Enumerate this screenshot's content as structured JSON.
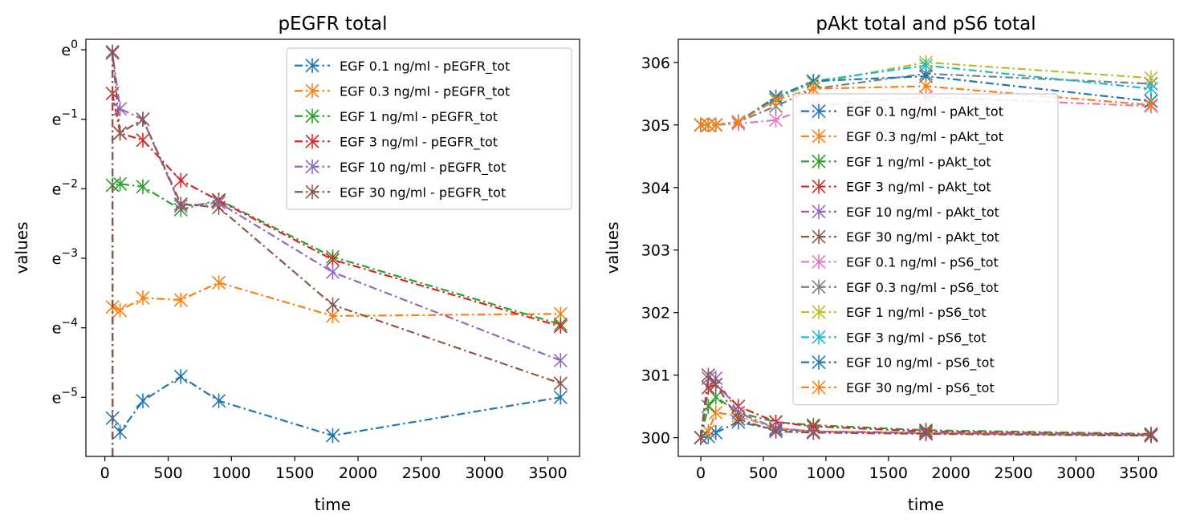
{
  "chart_data": [
    {
      "type": "line",
      "title": "pEGFR total",
      "xlabel": "time",
      "ylabel": "values",
      "xlim": [
        -150,
        3750
      ],
      "ylim": [
        -5.85,
        0.15
      ],
      "y_scale": "log (base e)",
      "xticks": [
        0,
        500,
        1000,
        1500,
        2000,
        2500,
        3000,
        3500
      ],
      "yticks": [
        {
          "value": 0,
          "base": "e",
          "exp": "0"
        },
        {
          "value": -1,
          "base": "e",
          "exp": "−1"
        },
        {
          "value": -2,
          "base": "e",
          "exp": "−2"
        },
        {
          "value": -3,
          "base": "e",
          "exp": "−3"
        },
        {
          "value": -4,
          "base": "e",
          "exp": "−4"
        },
        {
          "value": -5,
          "base": "e",
          "exp": "−5"
        }
      ],
      "grid": false,
      "legend_position": "upper right",
      "series": [
        {
          "name": "EGF 0.1 ng/ml - pEGFR_tot",
          "color": "#1f77b4",
          "x": [
            60,
            120,
            300,
            600,
            900,
            1800,
            3600
          ],
          "ln_y": [
            -5.3,
            -5.5,
            -5.05,
            -4.7,
            -5.05,
            -5.55,
            -5.0
          ]
        },
        {
          "name": "EGF 0.3 ng/ml - pEGFR_tot",
          "color": "#ff7f0e",
          "x": [
            60,
            120,
            300,
            600,
            900,
            1800,
            3600
          ],
          "ln_y": [
            -3.7,
            -3.75,
            -3.57,
            -3.6,
            -3.35,
            -3.83,
            -3.8
          ]
        },
        {
          "name": "EGF 1 ng/ml - pEGFR_tot",
          "color": "#2ca02c",
          "x": [
            60,
            120,
            300,
            600,
            900,
            1800,
            3600
          ],
          "ln_y": [
            -1.95,
            -1.93,
            -1.97,
            -2.3,
            -2.16,
            -2.98,
            -3.95
          ]
        },
        {
          "name": "EGF 3 ng/ml - pEGFR_tot",
          "color": "#d62728",
          "x": [
            60,
            120,
            300,
            600,
            900,
            1800,
            3600
          ],
          "ln_y": [
            -0.63,
            -1.2,
            -1.3,
            -1.88,
            -2.17,
            -3.02,
            -3.98
          ]
        },
        {
          "name": "EGF 10 ng/ml - pEGFR_tot",
          "color": "#9467bd",
          "x": [
            60,
            120,
            300,
            600,
            900,
            1800,
            3600
          ],
          "ln_y": [
            -0.05,
            -0.85,
            -1.0,
            -2.25,
            -2.2,
            -3.2,
            -4.47
          ]
        },
        {
          "name": "EGF 30 ng/ml - pEGFR_tot",
          "color": "#8c564b",
          "x": [
            60,
            120,
            300,
            600,
            900,
            1800,
            3600
          ],
          "ln_y": [
            -0.03,
            -1.2,
            -1.0,
            -2.22,
            -2.27,
            -3.67,
            -4.8
          ]
        }
      ]
    },
    {
      "type": "line",
      "title": "pAkt total and pS6 total",
      "xlabel": "time",
      "ylabel": "values",
      "xlim": [
        -180,
        3780
      ],
      "ylim": [
        299.7,
        306.37
      ],
      "xticks": [
        0,
        500,
        1000,
        1500,
        2000,
        2500,
        3000,
        3500
      ],
      "yticks": [
        300,
        301,
        302,
        303,
        304,
        305,
        306
      ],
      "grid": false,
      "legend_position": "center",
      "series": [
        {
          "name": "EGF 0.1 ng/ml - pAkt_tot",
          "color": "#1f77b4",
          "x": [
            0,
            60,
            120,
            300,
            600,
            900,
            1800,
            3600
          ],
          "y": [
            300.0,
            300.02,
            300.08,
            300.25,
            300.13,
            300.1,
            300.07,
            300.04
          ]
        },
        {
          "name": "EGF 0.3 ng/ml - pAkt_tot",
          "color": "#ff7f0e",
          "x": [
            0,
            60,
            120,
            300,
            600,
            900,
            1800,
            3600
          ],
          "y": [
            300.0,
            300.1,
            300.4,
            300.35,
            300.15,
            300.1,
            300.07,
            300.04
          ]
        },
        {
          "name": "EGF 1 ng/ml - pAkt_tot",
          "color": "#2ca02c",
          "x": [
            0,
            60,
            120,
            300,
            600,
            900,
            1800,
            3600
          ],
          "y": [
            300.0,
            300.5,
            300.65,
            300.4,
            300.25,
            300.2,
            300.12,
            300.06
          ]
        },
        {
          "name": "EGF 3 ng/ml - pAkt_tot",
          "color": "#d62728",
          "x": [
            0,
            60,
            120,
            300,
            600,
            900,
            1800,
            3600
          ],
          "y": [
            300.0,
            300.8,
            300.85,
            300.5,
            300.25,
            300.18,
            300.1,
            300.05
          ]
        },
        {
          "name": "EGF 10 ng/ml - pAkt_tot",
          "color": "#9467bd",
          "x": [
            0,
            60,
            120,
            300,
            600,
            900,
            1800,
            3600
          ],
          "y": [
            300.0,
            300.95,
            300.95,
            300.4,
            300.15,
            300.1,
            300.08,
            300.04
          ]
        },
        {
          "name": "EGF 30 ng/ml - pAkt_tot",
          "color": "#8c564b",
          "x": [
            0,
            60,
            120,
            300,
            600,
            900,
            1800,
            3600
          ],
          "y": [
            300.0,
            301.0,
            300.85,
            300.3,
            300.1,
            300.08,
            300.06,
            300.03
          ]
        },
        {
          "name": "EGF 0.1 ng/ml - pS6_tot",
          "color": "#e377c2",
          "x": [
            0,
            60,
            120,
            300,
            600,
            900,
            1800,
            3600
          ],
          "y": [
            305.0,
            305.0,
            305.0,
            305.02,
            305.08,
            305.3,
            305.45,
            305.3
          ]
        },
        {
          "name": "EGF 0.3 ng/ml - pS6_tot",
          "color": "#7f7f7f",
          "x": [
            0,
            60,
            120,
            300,
            600,
            900,
            1800,
            3600
          ],
          "y": [
            305.0,
            305.0,
            305.0,
            305.05,
            305.3,
            305.58,
            305.82,
            305.66
          ]
        },
        {
          "name": "EGF 1 ng/ml - pS6_tot",
          "color": "#bcbd22",
          "x": [
            0,
            60,
            120,
            300,
            600,
            900,
            1800,
            3600
          ],
          "y": [
            305.0,
            305.0,
            305.0,
            305.05,
            305.42,
            305.67,
            306.0,
            305.75
          ]
        },
        {
          "name": "EGF 3 ng/ml - pS6_tot",
          "color": "#17becf",
          "x": [
            0,
            60,
            120,
            300,
            600,
            900,
            1800,
            3600
          ],
          "y": [
            305.0,
            305.0,
            305.0,
            305.05,
            305.42,
            305.7,
            305.95,
            305.58
          ]
        },
        {
          "name": "EGF 10 ng/ml - pS6_tot",
          "color": "#1f77b4",
          "x": [
            0,
            60,
            120,
            300,
            600,
            900,
            1800,
            3600
          ],
          "y": [
            305.0,
            305.0,
            305.0,
            305.05,
            305.45,
            305.7,
            305.78,
            305.38
          ]
        },
        {
          "name": "EGF 30 ng/ml - pS6_tot",
          "color": "#ff7f0e",
          "x": [
            0,
            60,
            120,
            300,
            600,
            900,
            1800,
            3600
          ],
          "y": [
            305.0,
            305.0,
            305.0,
            305.05,
            305.4,
            305.58,
            305.62,
            305.32
          ]
        }
      ]
    }
  ]
}
